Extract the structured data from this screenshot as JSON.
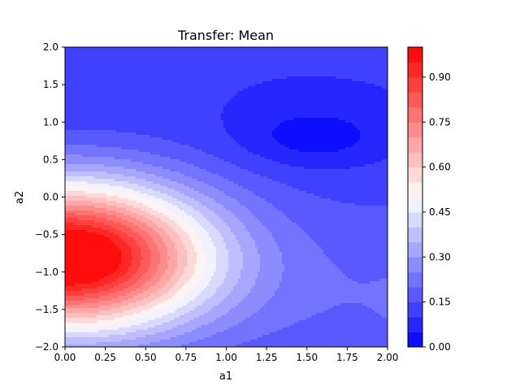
{
  "chart_data": {
    "type": "heatmap",
    "subtype": "filled-contour",
    "title": "Transfer: Mean",
    "xlabel": "a1",
    "ylabel": "a2",
    "xlim": [
      0.0,
      2.0
    ],
    "ylim": [
      -2.0,
      2.0
    ],
    "grid": false,
    "colormap": "bwr",
    "x_ticks": [
      "0.00",
      "0.25",
      "0.50",
      "0.75",
      "1.00",
      "1.25",
      "1.50",
      "1.75",
      "2.00"
    ],
    "y_ticks": [
      "−2.0",
      "−1.5",
      "−1.0",
      "−0.5",
      "0.0",
      "0.5",
      "1.0",
      "1.5",
      "2.0"
    ],
    "colorbar": {
      "range": [
        0.0,
        1.0
      ],
      "levels": 20,
      "tick_labels": [
        "0.00",
        "0.15",
        "0.30",
        "0.45",
        "0.60",
        "0.75",
        "0.90"
      ],
      "tick_values": [
        0.0,
        0.15,
        0.3,
        0.45,
        0.6,
        0.75,
        0.9
      ]
    },
    "features": [
      {
        "kind": "maximum",
        "x": 0.0,
        "y": -0.8,
        "value": 0.98
      },
      {
        "kind": "minimum",
        "x": 1.55,
        "y": 0.8,
        "value": 0.03
      }
    ]
  }
}
